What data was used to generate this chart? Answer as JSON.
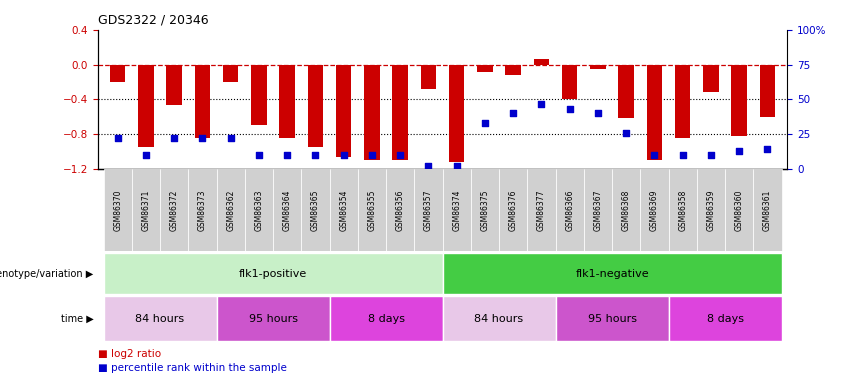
{
  "title": "GDS2322 / 20346",
  "samples": [
    "GSM86370",
    "GSM86371",
    "GSM86372",
    "GSM86373",
    "GSM86362",
    "GSM86363",
    "GSM86364",
    "GSM86365",
    "GSM86354",
    "GSM86355",
    "GSM86356",
    "GSM86357",
    "GSM86374",
    "GSM86375",
    "GSM86376",
    "GSM86377",
    "GSM86366",
    "GSM86367",
    "GSM86368",
    "GSM86369",
    "GSM86358",
    "GSM86359",
    "GSM86360",
    "GSM86361"
  ],
  "log2_ratio": [
    -0.2,
    -0.95,
    -0.46,
    -0.85,
    -0.2,
    -0.7,
    -0.85,
    -0.95,
    -1.07,
    -1.1,
    -1.1,
    -0.28,
    -1.12,
    -0.08,
    -0.12,
    0.07,
    -0.4,
    -0.05,
    -0.62,
    -1.1,
    -0.85,
    -0.32,
    -0.82,
    -0.6
  ],
  "percentile": [
    22,
    10,
    22,
    22,
    22,
    10,
    10,
    10,
    10,
    10,
    10,
    2,
    2,
    33,
    40,
    47,
    43,
    40,
    26,
    10,
    10,
    10,
    13,
    14
  ],
  "bar_color": "#cc0000",
  "dot_color": "#0000cc",
  "dashed_line_color": "#cc0000",
  "dotted_line_color": "#000000",
  "ylim_left": [
    -1.2,
    0.4
  ],
  "ylim_right": [
    0,
    100
  ],
  "yticks_left": [
    0.4,
    0.0,
    -0.4,
    -0.8,
    -1.2
  ],
  "yticks_right": [
    100,
    75,
    50,
    25,
    0
  ],
  "ytick_labels_right": [
    "100%",
    "75",
    "50",
    "25",
    "0"
  ],
  "genotype_groups": [
    {
      "label": "flk1-positive",
      "start": 0,
      "end": 11,
      "color": "#c8f0c8"
    },
    {
      "label": "flk1-negative",
      "start": 12,
      "end": 23,
      "color": "#44cc44"
    }
  ],
  "time_groups": [
    {
      "label": "84 hours",
      "start": 0,
      "end": 3,
      "color": "#e8c8e8"
    },
    {
      "label": "95 hours",
      "start": 4,
      "end": 7,
      "color": "#cc55cc"
    },
    {
      "label": "8 days",
      "start": 8,
      "end": 11,
      "color": "#dd44dd"
    },
    {
      "label": "84 hours",
      "start": 12,
      "end": 15,
      "color": "#e8c8e8"
    },
    {
      "label": "95 hours",
      "start": 16,
      "end": 19,
      "color": "#cc55cc"
    },
    {
      "label": "8 days",
      "start": 20,
      "end": 23,
      "color": "#dd44dd"
    }
  ],
  "xticklabel_bg": "#cccccc",
  "legend_items": [
    {
      "label": "log2 ratio",
      "color": "#cc0000"
    },
    {
      "label": "percentile rank within the sample",
      "color": "#0000cc"
    }
  ]
}
